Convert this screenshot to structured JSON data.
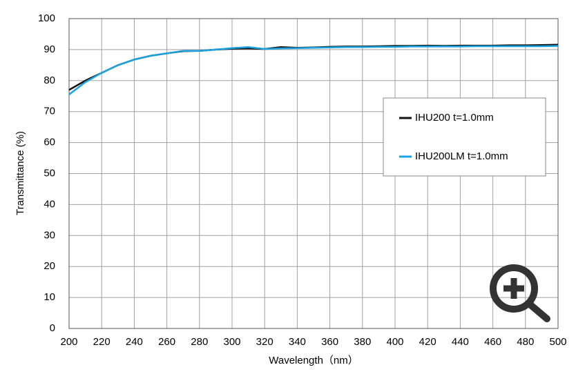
{
  "chart_data": {
    "type": "line",
    "x_label": "Wavelength（nm）",
    "y_label": "Transmittance (%)",
    "x": [
      200,
      210,
      220,
      230,
      240,
      250,
      260,
      270,
      280,
      290,
      300,
      310,
      320,
      330,
      340,
      350,
      360,
      370,
      380,
      390,
      400,
      410,
      420,
      430,
      440,
      450,
      460,
      470,
      480,
      490,
      500
    ],
    "series": [
      {
        "name": "IHU200 t=1.0mm",
        "color": "#111111",
        "values": [
          77,
          80,
          82.5,
          85,
          86.8,
          88,
          88.8,
          89.5,
          89.6,
          90,
          90.3,
          90.4,
          90.2,
          90.8,
          90.6,
          90.7,
          90.9,
          91,
          91,
          91.1,
          91.2,
          91.2,
          91.3,
          91.2,
          91.3,
          91.3,
          91.3,
          91.4,
          91.4,
          91.5,
          91.6
        ]
      },
      {
        "name": "IHU200LM t=1.0mm",
        "color": "#1aa3e0",
        "values": [
          75.5,
          79.5,
          82.5,
          85,
          86.8,
          88,
          88.8,
          89.6,
          89.6,
          90,
          90.5,
          90.8,
          90.2,
          90.4,
          90.5,
          90.6,
          90.7,
          90.8,
          90.8,
          90.9,
          90.9,
          91,
          91,
          91,
          91,
          91.1,
          91.1,
          91.1,
          91.1,
          91.1,
          91.2
        ]
      }
    ],
    "xlim": [
      200,
      500
    ],
    "xticks": [
      200,
      220,
      240,
      260,
      280,
      300,
      320,
      340,
      360,
      380,
      400,
      420,
      440,
      460,
      480,
      500
    ],
    "ylim": [
      0,
      100
    ],
    "yticks": [
      0,
      10,
      20,
      30,
      40,
      50,
      60,
      70,
      80,
      90,
      100
    ],
    "grid": true,
    "legend": "right"
  }
}
